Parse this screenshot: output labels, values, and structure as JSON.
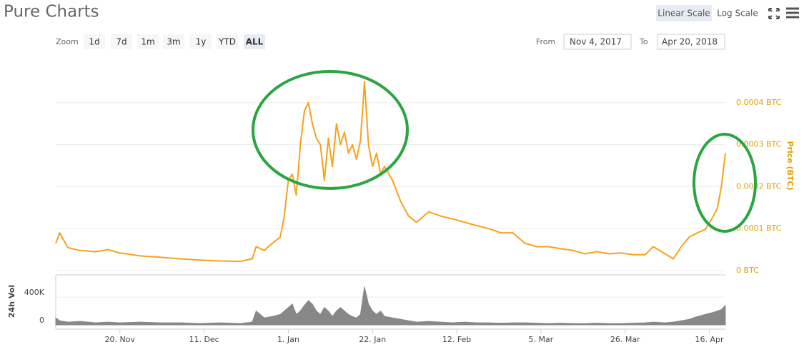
{
  "chart_data": [
    {
      "type": "line",
      "title": "Pure Charts",
      "scale_options": [
        "Linear Scale",
        "Log Scale"
      ],
      "log_scale": false,
      "zoom_label": "Zoom",
      "zoom_options": [
        "1d",
        "7d",
        "1m",
        "3m",
        "1y",
        "YTD",
        "ALL"
      ],
      "from_label": "From",
      "from": "Nov 4, 2017",
      "to_label": "To",
      "to": "Apr 20, 2018",
      "y_label": "Price (BTC)",
      "xlim": [
        "2017-11-04",
        "2018-04-20"
      ],
      "xticks": [
        {
          "value": "2017-11-20",
          "label": "20. Nov"
        },
        {
          "value": "2017-12-11",
          "label": "11. Dec"
        },
        {
          "value": "2018-01-01",
          "label": "1. Jan"
        },
        {
          "value": "2018-01-22",
          "label": "22. Jan"
        },
        {
          "value": "2018-02-12",
          "label": "12. Feb"
        },
        {
          "value": "2018-03-05",
          "label": "5. Mar"
        },
        {
          "value": "2018-03-26",
          "label": "26. Mar"
        },
        {
          "value": "2018-04-16",
          "label": "16. Apr"
        }
      ],
      "ylim": [
        0,
        0.0005
      ],
      "yticks": [
        {
          "value": 0,
          "label": "0 BTC"
        },
        {
          "value": 0.0001,
          "label": "0.0001 BTC"
        },
        {
          "value": 0.0002,
          "label": "0.0002 BTC"
        },
        {
          "value": 0.0003,
          "label": "0.0003 BTC"
        },
        {
          "value": 0.0004,
          "label": "0.0004 BTC"
        }
      ],
      "grid": true,
      "x": [
        "2017-11-04",
        "2017-11-05",
        "2017-11-07",
        "2017-11-10",
        "2017-11-14",
        "2017-11-17",
        "2017-11-20",
        "2017-11-25",
        "2017-11-30",
        "2017-12-05",
        "2017-12-10",
        "2017-12-15",
        "2017-12-20",
        "2017-12-23",
        "2017-12-24",
        "2017-12-26",
        "2017-12-28",
        "2017-12-30",
        "2017-12-31",
        "2018-01-01",
        "2018-01-02",
        "2018-01-03",
        "2018-01-04",
        "2018-01-05",
        "2018-01-06",
        "2018-01-07",
        "2018-01-08",
        "2018-01-09",
        "2018-01-10",
        "2018-01-11",
        "2018-01-12",
        "2018-01-13",
        "2018-01-14",
        "2018-01-15",
        "2018-01-16",
        "2018-01-17",
        "2018-01-18",
        "2018-01-19",
        "2018-01-20",
        "2018-01-21",
        "2018-01-22",
        "2018-01-23",
        "2018-01-24",
        "2018-01-25",
        "2018-01-27",
        "2018-01-29",
        "2018-01-31",
        "2018-02-02",
        "2018-02-05",
        "2018-02-08",
        "2018-02-11",
        "2018-02-14",
        "2018-02-17",
        "2018-02-20",
        "2018-02-23",
        "2018-02-26",
        "2018-03-01",
        "2018-03-04",
        "2018-03-07",
        "2018-03-10",
        "2018-03-13",
        "2018-03-16",
        "2018-03-19",
        "2018-03-22",
        "2018-03-25",
        "2018-03-28",
        "2018-03-31",
        "2018-04-02",
        "2018-04-05",
        "2018-04-07",
        "2018-04-09",
        "2018-04-11",
        "2018-04-13",
        "2018-04-15",
        "2018-04-17",
        "2018-04-18",
        "2018-04-19",
        "2018-04-20"
      ],
      "series": [
        {
          "color": "#f7a21b",
          "values": [
            6.5e-05,
            9e-05,
            5.5e-05,
            4.8e-05,
            4.5e-05,
            5e-05,
            4.2e-05,
            3.5e-05,
            3.2e-05,
            2.8e-05,
            2.5e-05,
            2.3e-05,
            2.2e-05,
            2.8e-05,
            5.7e-05,
            4.8e-05,
            6.5e-05,
            8e-05,
            0.00013,
            0.000215,
            0.00023,
            0.00018,
            0.0003,
            0.00038,
            0.0004,
            0.00035,
            0.000315,
            0.0003,
            0.000215,
            0.000315,
            0.000248,
            0.00035,
            0.0003,
            0.00033,
            0.00028,
            0.0003,
            0.000265,
            0.00031,
            0.00045,
            0.0003,
            0.000248,
            0.00028,
            0.00023,
            0.000248,
            0.000215,
            0.000165,
            0.00013,
            0.000115,
            0.00014,
            0.00013,
            0.000123,
            0.000115,
            0.000107,
            0.0001,
            9e-05,
            9e-05,
            6.5e-05,
            5.7e-05,
            5.7e-05,
            5.2e-05,
            4.8e-05,
            4e-05,
            4.5e-05,
            4e-05,
            4.2e-05,
            3.8e-05,
            3.8e-05,
            5.7e-05,
            4e-05,
            2.8e-05,
            5.7e-05,
            8e-05,
            9e-05,
            9.8e-05,
            0.00013,
            0.000148,
            0.0002,
            0.00028
          ]
        }
      ]
    },
    {
      "type": "area",
      "y_label": "24h Vol",
      "xlim": [
        "2017-11-04",
        "2018-04-20"
      ],
      "ylim": [
        0,
        700000
      ],
      "yticks": [
        0,
        {
          "value": 400000,
          "label": "400K"
        }
      ],
      "x": [
        "2017-11-04",
        "2017-11-05",
        "2017-11-07",
        "2017-11-10",
        "2017-11-14",
        "2017-11-17",
        "2017-11-20",
        "2017-11-25",
        "2017-11-30",
        "2017-12-05",
        "2017-12-10",
        "2017-12-15",
        "2017-12-20",
        "2017-12-23",
        "2017-12-24",
        "2017-12-26",
        "2017-12-28",
        "2017-12-30",
        "2017-12-31",
        "2018-01-01",
        "2018-01-02",
        "2018-01-03",
        "2018-01-04",
        "2018-01-05",
        "2018-01-06",
        "2018-01-07",
        "2018-01-08",
        "2018-01-09",
        "2018-01-10",
        "2018-01-11",
        "2018-01-12",
        "2018-01-13",
        "2018-01-14",
        "2018-01-15",
        "2018-01-16",
        "2018-01-17",
        "2018-01-18",
        "2018-01-19",
        "2018-01-20",
        "2018-01-21",
        "2018-01-22",
        "2018-01-23",
        "2018-01-24",
        "2018-01-25",
        "2018-01-27",
        "2018-01-29",
        "2018-01-31",
        "2018-02-02",
        "2018-02-05",
        "2018-02-08",
        "2018-02-11",
        "2018-02-14",
        "2018-02-17",
        "2018-02-20",
        "2018-02-23",
        "2018-02-26",
        "2018-03-01",
        "2018-03-04",
        "2018-03-07",
        "2018-03-10",
        "2018-03-13",
        "2018-03-16",
        "2018-03-19",
        "2018-03-22",
        "2018-03-25",
        "2018-03-28",
        "2018-03-31",
        "2018-04-02",
        "2018-04-05",
        "2018-04-07",
        "2018-04-09",
        "2018-04-11",
        "2018-04-13",
        "2018-04-15",
        "2018-04-17",
        "2018-04-18",
        "2018-04-19",
        "2018-04-20"
      ],
      "series": [
        {
          "color": "#888888",
          "values": [
            100000,
            60000,
            40000,
            50000,
            30000,
            40000,
            30000,
            40000,
            30000,
            30000,
            20000,
            30000,
            20000,
            40000,
            200000,
            100000,
            120000,
            150000,
            200000,
            250000,
            300000,
            150000,
            200000,
            280000,
            350000,
            300000,
            200000,
            150000,
            250000,
            200000,
            120000,
            200000,
            250000,
            200000,
            150000,
            120000,
            100000,
            150000,
            550000,
            300000,
            200000,
            150000,
            200000,
            120000,
            100000,
            80000,
            60000,
            40000,
            50000,
            40000,
            30000,
            40000,
            30000,
            30000,
            25000,
            30000,
            30000,
            25000,
            20000,
            25000,
            20000,
            20000,
            25000,
            20000,
            20000,
            25000,
            30000,
            40000,
            30000,
            40000,
            60000,
            80000,
            120000,
            150000,
            180000,
            200000,
            220000,
            280000
          ]
        }
      ]
    }
  ]
}
